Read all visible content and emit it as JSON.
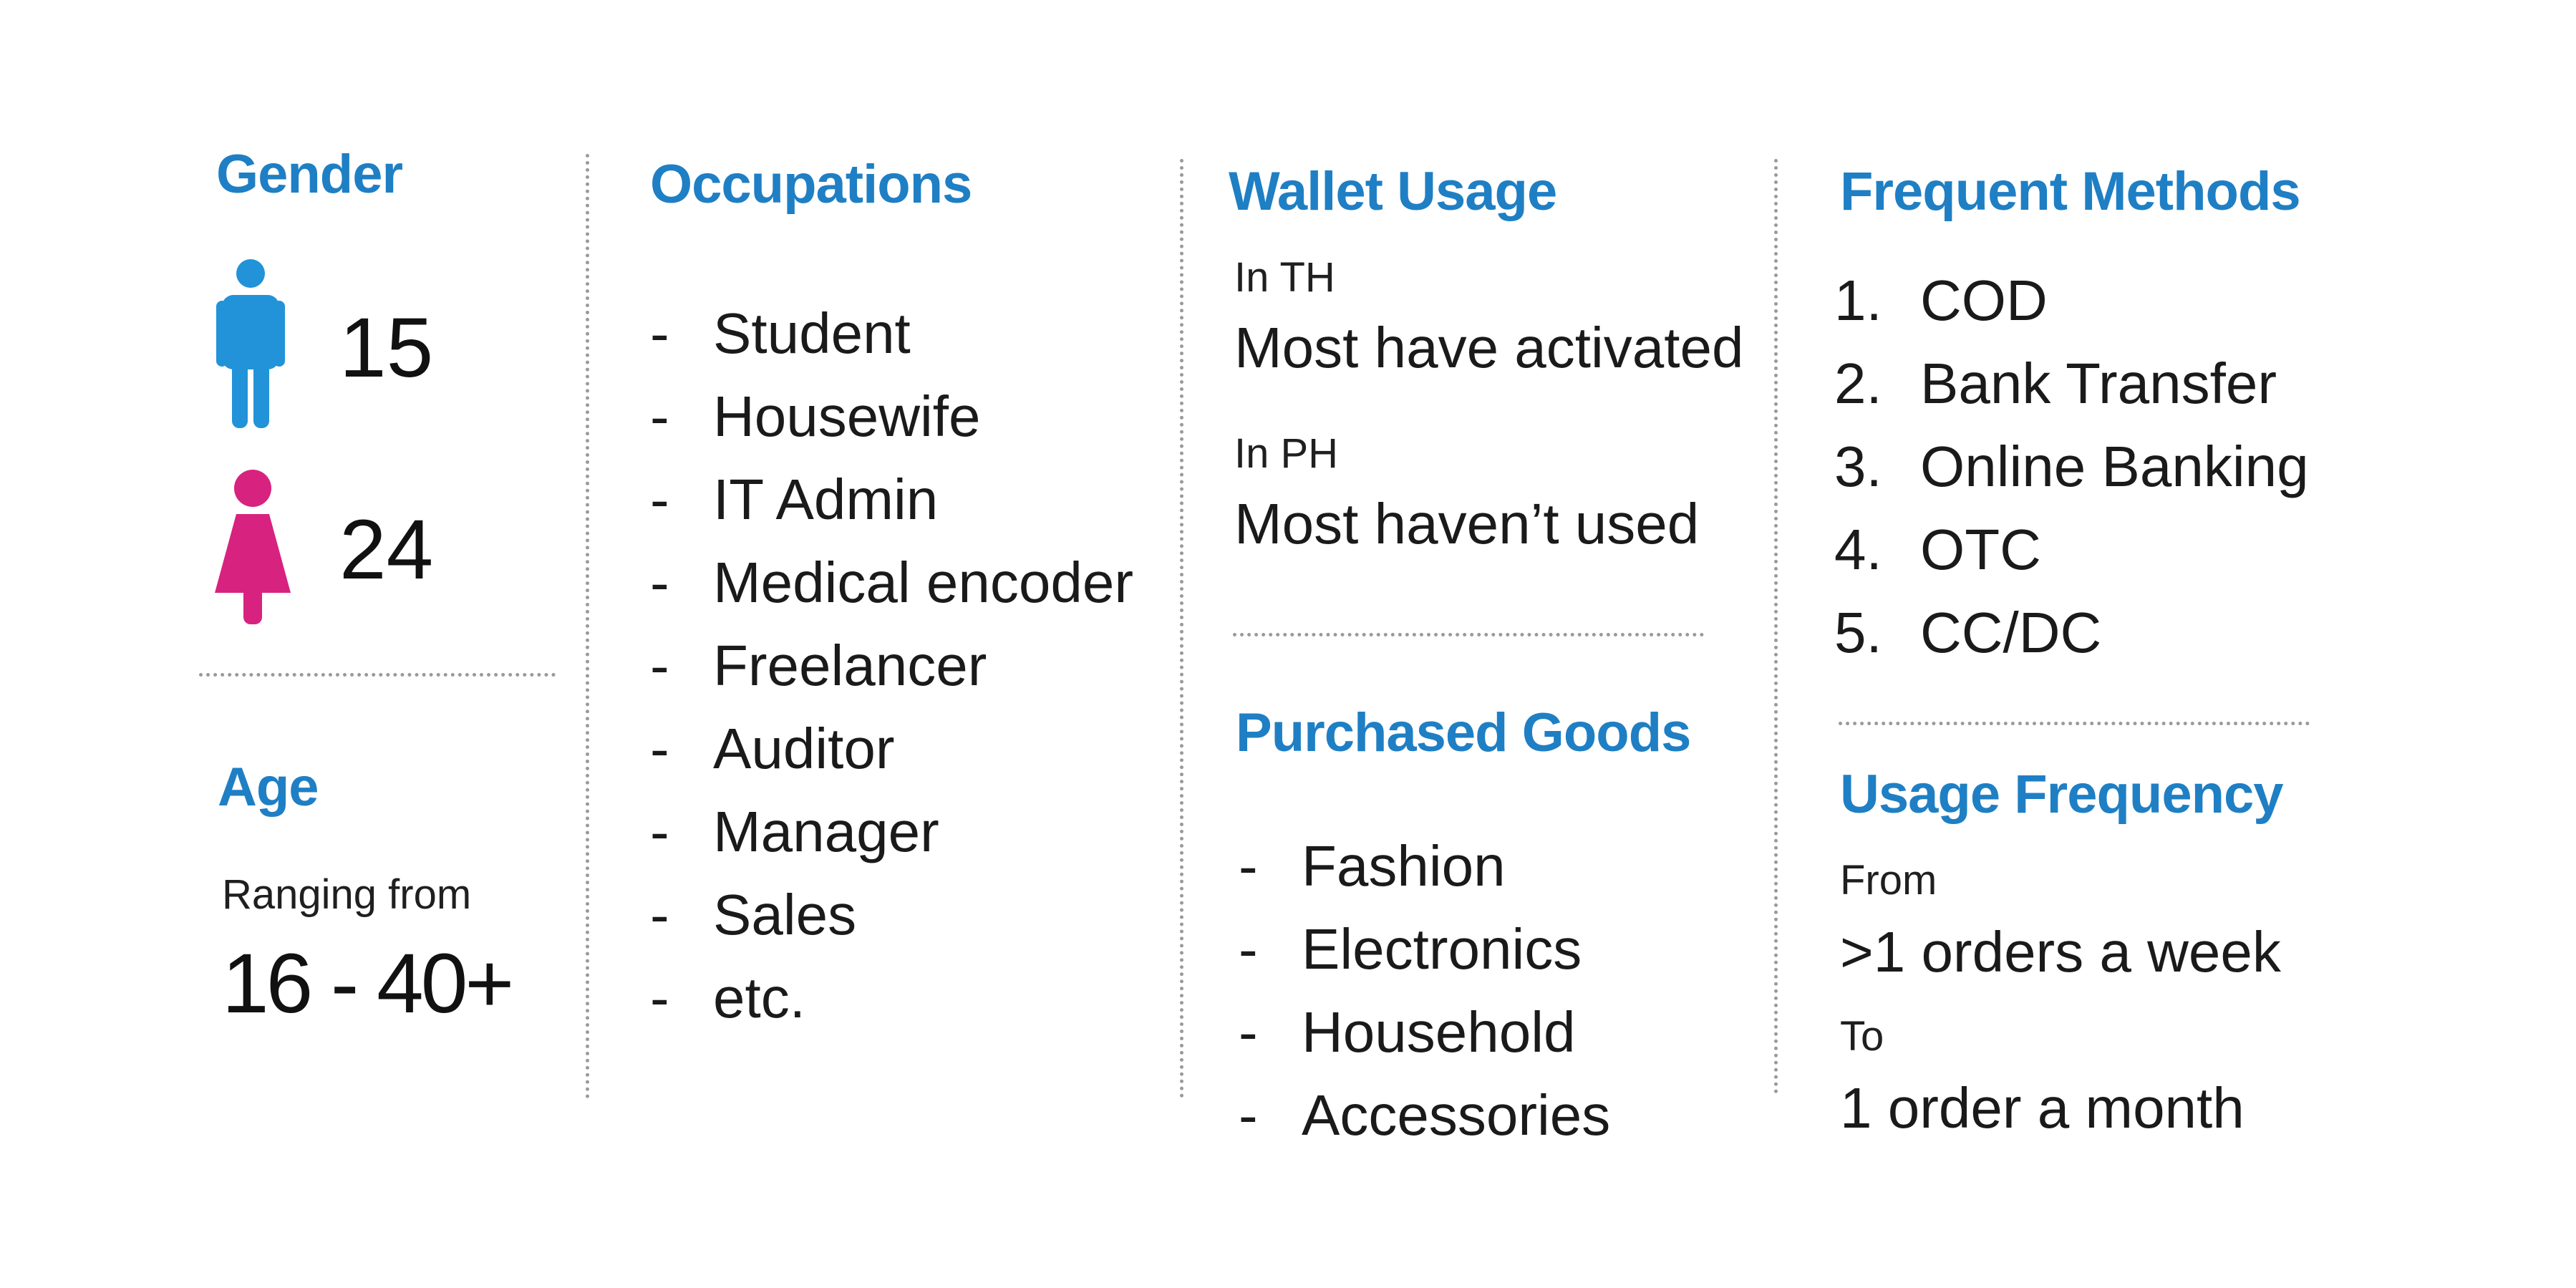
{
  "colors": {
    "heading": "#1f7fc4",
    "male": "#2293d8",
    "female": "#d8227f",
    "separator": "#9a9a9a"
  },
  "gender": {
    "title": "Gender",
    "male_icon": "male-person-icon",
    "male_count": "15",
    "female_icon": "female-person-icon",
    "female_count": "24"
  },
  "age": {
    "title": "Age",
    "caption": "Ranging from",
    "range": "16 - 40+"
  },
  "occupations": {
    "title": "Occupations",
    "bullet": "-",
    "items": [
      "Student",
      "Housewife",
      "IT Admin",
      "Medical encoder",
      "Freelancer",
      "Auditor",
      "Manager",
      "Sales",
      "etc."
    ]
  },
  "wallet_usage": {
    "title": "Wallet Usage",
    "th_label": "In TH",
    "th_value": "Most have activated",
    "ph_label": "In PH",
    "ph_value": "Most haven’t used"
  },
  "purchased_goods": {
    "title": "Purchased Goods",
    "bullet": "-",
    "items": [
      "Fashion",
      "Electronics",
      "Household",
      "Accessories"
    ]
  },
  "frequent_methods": {
    "title": "Frequent Methods",
    "items": [
      {
        "num": "1.",
        "label": "COD"
      },
      {
        "num": "2.",
        "label": "Bank Transfer"
      },
      {
        "num": "3.",
        "label": "Online Banking"
      },
      {
        "num": "4.",
        "label": "OTC"
      },
      {
        "num": "5.",
        "label": "CC/DC"
      }
    ]
  },
  "usage_frequency": {
    "title": "Usage Frequency",
    "from_label": "From",
    "from_value": ">1 orders a week",
    "to_label": "To",
    "to_value": "1 order a month"
  }
}
